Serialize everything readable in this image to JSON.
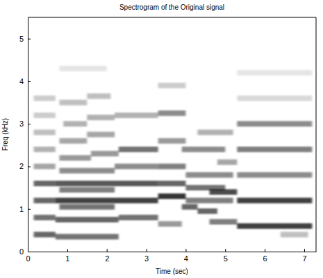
{
  "chart_data": {
    "type": "spectrogram",
    "title": "Spectrogram of the Original signal",
    "x_label": "Time (sec)",
    "y_label": "Freq (kHz)",
    "xlim": [
      0,
      7.3
    ],
    "ylim": [
      0,
      5.5
    ],
    "xticks": [
      0,
      1,
      2,
      3,
      4,
      5,
      6,
      7
    ],
    "yticks": [
      0,
      1,
      2,
      3,
      4,
      5
    ],
    "grid": false,
    "segments": [
      {
        "time": [
          0.15,
          0.7
        ],
        "freq": 0.4,
        "level": 0.6
      },
      {
        "time": [
          0.15,
          0.7
        ],
        "freq": 0.8,
        "level": 0.55
      },
      {
        "time": [
          0.15,
          0.7
        ],
        "freq": 1.2,
        "level": 0.6
      },
      {
        "time": [
          0.15,
          0.7
        ],
        "freq": 1.6,
        "level": 0.6
      },
      {
        "time": [
          0.15,
          0.7
        ],
        "freq": 2.0,
        "level": 0.35
      },
      {
        "time": [
          0.15,
          0.7
        ],
        "freq": 2.4,
        "level": 0.3
      },
      {
        "time": [
          0.15,
          0.7
        ],
        "freq": 2.8,
        "level": 0.25
      },
      {
        "time": [
          0.15,
          0.7
        ],
        "freq": 3.2,
        "level": 0.2
      },
      {
        "time": [
          0.15,
          0.7
        ],
        "freq": 3.6,
        "level": 0.2
      },
      {
        "time": [
          0.7,
          2.3
        ],
        "freq": 0.35,
        "level": 0.55
      },
      {
        "time": [
          0.7,
          2.3
        ],
        "freq": 0.75,
        "level": 0.6
      },
      {
        "time": [
          0.7,
          3.3
        ],
        "freq": 1.2,
        "level": 0.75
      },
      {
        "time": [
          0.7,
          3.3
        ],
        "freq": 1.6,
        "level": 0.65
      },
      {
        "time": [
          0.8,
          2.2
        ],
        "freq": 1.05,
        "level": 0.55
      },
      {
        "time": [
          0.8,
          2.2
        ],
        "freq": 1.45,
        "level": 0.5
      },
      {
        "time": [
          0.8,
          2.2
        ],
        "freq": 1.9,
        "level": 0.45
      },
      {
        "time": [
          2.2,
          3.3
        ],
        "freq": 2.0,
        "level": 0.45
      },
      {
        "time": [
          0.8,
          1.6
        ],
        "freq": 2.2,
        "level": 0.4
      },
      {
        "time": [
          1.6,
          2.3
        ],
        "freq": 2.3,
        "level": 0.4
      },
      {
        "time": [
          2.3,
          3.3
        ],
        "freq": 2.4,
        "level": 0.55
      },
      {
        "time": [
          0.8,
          1.5
        ],
        "freq": 2.6,
        "level": 0.35
      },
      {
        "time": [
          1.5,
          2.2
        ],
        "freq": 2.75,
        "level": 0.35
      },
      {
        "time": [
          0.9,
          1.5
        ],
        "freq": 3.0,
        "level": 0.3
      },
      {
        "time": [
          1.5,
          2.2
        ],
        "freq": 3.15,
        "level": 0.3
      },
      {
        "time": [
          2.2,
          3.3
        ],
        "freq": 3.2,
        "level": 0.3
      },
      {
        "time": [
          0.8,
          1.5
        ],
        "freq": 3.5,
        "level": 0.25
      },
      {
        "time": [
          1.5,
          2.1
        ],
        "freq": 3.65,
        "level": 0.25
      },
      {
        "time": [
          0.8,
          2.0
        ],
        "freq": 4.3,
        "level": 0.1
      },
      {
        "time": [
          2.3,
          3.3
        ],
        "freq": 0.8,
        "level": 0.55
      },
      {
        "time": [
          3.3,
          4.0
        ],
        "freq": 1.3,
        "level": 0.8
      },
      {
        "time": [
          3.3,
          4.0
        ],
        "freq": 1.6,
        "level": 0.6
      },
      {
        "time": [
          3.3,
          4.0
        ],
        "freq": 2.0,
        "level": 0.5
      },
      {
        "time": [
          3.3,
          4.0
        ],
        "freq": 2.6,
        "level": 0.4
      },
      {
        "time": [
          3.3,
          4.0
        ],
        "freq": 3.25,
        "level": 0.45
      },
      {
        "time": [
          3.3,
          4.0
        ],
        "freq": 3.9,
        "level": 0.2
      },
      {
        "time": [
          3.3,
          3.9
        ],
        "freq": 0.65,
        "level": 0.4
      },
      {
        "time": [
          3.9,
          4.3
        ],
        "freq": 1.05,
        "level": 0.6
      },
      {
        "time": [
          4.3,
          4.8
        ],
        "freq": 0.95,
        "level": 0.6
      },
      {
        "time": [
          4.0,
          5.0
        ],
        "freq": 1.5,
        "level": 0.55
      },
      {
        "time": [
          4.0,
          5.2
        ],
        "freq": 1.8,
        "level": 0.45
      },
      {
        "time": [
          3.9,
          5.0
        ],
        "freq": 2.4,
        "level": 0.45
      },
      {
        "time": [
          4.3,
          5.2
        ],
        "freq": 2.8,
        "level": 0.3
      },
      {
        "time": [
          4.0,
          5.2
        ],
        "freq": 1.2,
        "level": 0.5
      },
      {
        "time": [
          4.6,
          5.3
        ],
        "freq": 1.4,
        "level": 0.7
      },
      {
        "time": [
          4.6,
          5.3
        ],
        "freq": 0.7,
        "level": 0.5
      },
      {
        "time": [
          4.8,
          5.3
        ],
        "freq": 2.1,
        "level": 0.35
      },
      {
        "time": [
          5.3,
          7.2
        ],
        "freq": 0.6,
        "level": 0.75
      },
      {
        "time": [
          5.3,
          7.2
        ],
        "freq": 1.2,
        "level": 0.75
      },
      {
        "time": [
          5.3,
          7.2
        ],
        "freq": 1.8,
        "level": 0.45
      },
      {
        "time": [
          5.3,
          7.2
        ],
        "freq": 2.4,
        "level": 0.5
      },
      {
        "time": [
          5.3,
          7.2
        ],
        "freq": 3.0,
        "level": 0.45
      },
      {
        "time": [
          5.3,
          7.2
        ],
        "freq": 3.6,
        "level": 0.15
      },
      {
        "time": [
          5.3,
          7.2
        ],
        "freq": 4.2,
        "level": 0.1
      },
      {
        "time": [
          6.4,
          7.1
        ],
        "freq": 0.4,
        "level": 0.25
      }
    ]
  }
}
